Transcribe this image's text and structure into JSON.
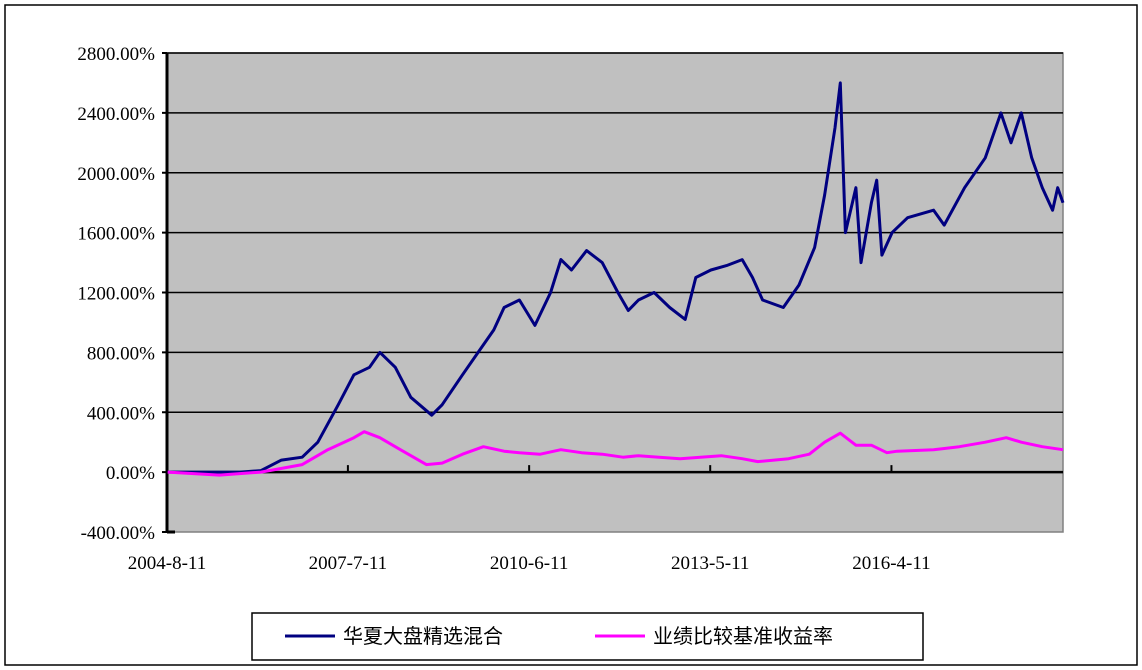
{
  "chart_data": {
    "type": "line",
    "title": "",
    "xlabel": "",
    "ylabel": "",
    "x_tick_labels": [
      "2004-8-11",
      "2007-7-11",
      "2010-6-11",
      "2013-5-11",
      "2016-4-11"
    ],
    "x_tick_dates": [
      "2004-08-11",
      "2007-07-11",
      "2010-06-11",
      "2013-05-11",
      "2016-04-11"
    ],
    "xlim": [
      "2004-08-11",
      "2019-01-15"
    ],
    "y_tick_labels": [
      "2800.00%",
      "2400.00%",
      "2000.00%",
      "1600.00%",
      "1200.00%",
      "800.00%",
      "400.00%",
      "0.00%",
      "-400.00%"
    ],
    "ylim": [
      -400,
      2800
    ],
    "y_unit": "%",
    "grid": true,
    "plot_background": "#c0c0c0",
    "legend_position": "bottom",
    "series": [
      {
        "name": "华夏大盘精选混合",
        "color": "#000080",
        "points": [
          [
            "2004-08",
            0
          ],
          [
            "2005-02",
            0
          ],
          [
            "2005-10",
            0
          ],
          [
            "2006-02",
            10
          ],
          [
            "2006-06",
            80
          ],
          [
            "2006-10",
            100
          ],
          [
            "2007-01",
            200
          ],
          [
            "2007-05",
            450
          ],
          [
            "2007-08",
            650
          ],
          [
            "2007-11",
            700
          ],
          [
            "2008-01",
            800
          ],
          [
            "2008-04",
            700
          ],
          [
            "2008-07",
            500
          ],
          [
            "2008-11",
            380
          ],
          [
            "2009-01",
            450
          ],
          [
            "2009-05",
            650
          ],
          [
            "2009-08",
            800
          ],
          [
            "2009-11",
            950
          ],
          [
            "2010-01",
            1100
          ],
          [
            "2010-04",
            1150
          ],
          [
            "2010-07",
            980
          ],
          [
            "2010-10",
            1200
          ],
          [
            "2010-12",
            1420
          ],
          [
            "2011-02",
            1350
          ],
          [
            "2011-05",
            1480
          ],
          [
            "2011-08",
            1400
          ],
          [
            "2011-11",
            1200
          ],
          [
            "2012-01",
            1080
          ],
          [
            "2012-03",
            1150
          ],
          [
            "2012-06",
            1200
          ],
          [
            "2012-09",
            1100
          ],
          [
            "2012-12",
            1020
          ],
          [
            "2013-02",
            1300
          ],
          [
            "2013-05",
            1350
          ],
          [
            "2013-08",
            1380
          ],
          [
            "2013-11",
            1420
          ],
          [
            "2014-01",
            1300
          ],
          [
            "2014-03",
            1150
          ],
          [
            "2014-07",
            1100
          ],
          [
            "2014-10",
            1250
          ],
          [
            "2015-01",
            1500
          ],
          [
            "2015-03",
            1850
          ],
          [
            "2015-05",
            2300
          ],
          [
            "2015-06",
            2600
          ],
          [
            "2015-07",
            1600
          ],
          [
            "2015-09",
            1900
          ],
          [
            "2015-10",
            1400
          ],
          [
            "2015-12",
            1800
          ],
          [
            "2016-01",
            1950
          ],
          [
            "2016-02",
            1450
          ],
          [
            "2016-04",
            1600
          ],
          [
            "2016-07",
            1700
          ],
          [
            "2016-12",
            1750
          ],
          [
            "2017-02",
            1650
          ],
          [
            "2017-06",
            1900
          ],
          [
            "2017-10",
            2100
          ],
          [
            "2018-01",
            2400
          ],
          [
            "2018-03",
            2200
          ],
          [
            "2018-05",
            2400
          ],
          [
            "2018-07",
            2100
          ],
          [
            "2018-09",
            1900
          ],
          [
            "2018-11",
            1750
          ],
          [
            "2018-12",
            1900
          ],
          [
            "2019-01",
            1800
          ]
        ]
      },
      {
        "name": "业绩比较基准收益率",
        "color": "#ff00ff",
        "points": [
          [
            "2004-08",
            0
          ],
          [
            "2005-06",
            -20
          ],
          [
            "2006-02",
            0
          ],
          [
            "2006-10",
            50
          ],
          [
            "2007-03",
            150
          ],
          [
            "2007-08",
            230
          ],
          [
            "2007-10",
            270
          ],
          [
            "2008-01",
            230
          ],
          [
            "2008-05",
            150
          ],
          [
            "2008-10",
            50
          ],
          [
            "2009-01",
            60
          ],
          [
            "2009-05",
            120
          ],
          [
            "2009-09",
            170
          ],
          [
            "2010-01",
            140
          ],
          [
            "2010-04",
            130
          ],
          [
            "2010-08",
            120
          ],
          [
            "2010-12",
            150
          ],
          [
            "2011-04",
            130
          ],
          [
            "2011-08",
            120
          ],
          [
            "2011-12",
            100
          ],
          [
            "2012-03",
            110
          ],
          [
            "2012-07",
            100
          ],
          [
            "2012-11",
            90
          ],
          [
            "2013-03",
            100
          ],
          [
            "2013-07",
            110
          ],
          [
            "2013-11",
            90
          ],
          [
            "2014-02",
            70
          ],
          [
            "2014-08",
            90
          ],
          [
            "2014-12",
            120
          ],
          [
            "2015-03",
            200
          ],
          [
            "2015-06",
            260
          ],
          [
            "2015-09",
            180
          ],
          [
            "2015-12",
            180
          ],
          [
            "2016-03",
            130
          ],
          [
            "2016-05",
            140
          ],
          [
            "2016-12",
            150
          ],
          [
            "2017-05",
            170
          ],
          [
            "2017-10",
            200
          ],
          [
            "2018-02",
            230
          ],
          [
            "2018-05",
            200
          ],
          [
            "2018-09",
            170
          ],
          [
            "2019-01",
            150
          ]
        ]
      }
    ]
  }
}
